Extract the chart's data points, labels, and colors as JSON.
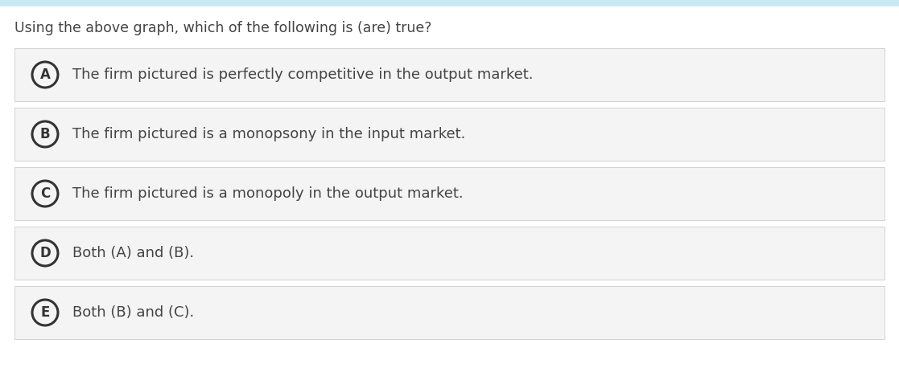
{
  "title": "Using the above graph, which of the following is (are) true?",
  "title_fontsize": 12.5,
  "title_color": "#444444",
  "background_color": "#ffffff",
  "option_bg_color": "#f4f4f4",
  "option_border_color": "#cccccc",
  "options": [
    {
      "letter": "A",
      "text": "The firm pictured is perfectly competitive in the output market.",
      "bold": false
    },
    {
      "letter": "B",
      "text": "The firm pictured is a monopsony in the input market.",
      "bold": false
    },
    {
      "letter": "C",
      "text": "The firm pictured is a monopoly in the output market.",
      "bold": false
    },
    {
      "letter": "D",
      "text": "Both (A) and (B).",
      "bold": false
    },
    {
      "letter": "E",
      "text": "Both (B) and (C).",
      "bold": false
    }
  ],
  "circle_color": "#333333",
  "circle_linewidth": 2.2,
  "letter_fontsize": 12,
  "option_fontsize": 13,
  "top_bar_color": "#c8eaf5",
  "fig_width": 11.17,
  "fig_height": 4.63,
  "dpi": 100
}
